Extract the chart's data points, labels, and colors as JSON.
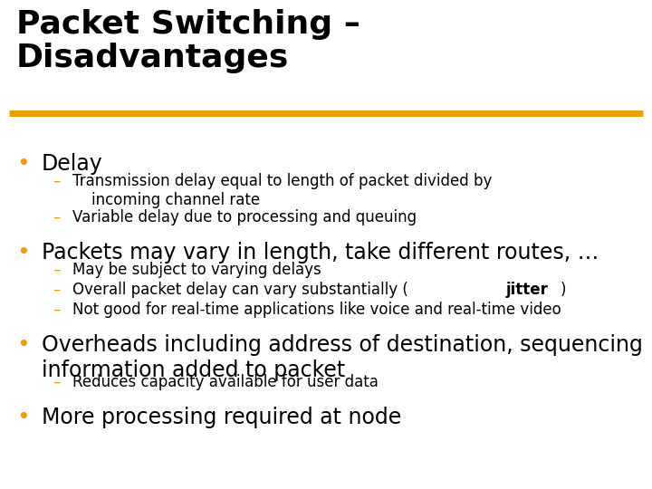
{
  "title_line1": "Packet Switching –",
  "title_line2": "Disadvantages",
  "title_color": "#000000",
  "title_fontsize": 26,
  "separator_color": "#E8A000",
  "background_color": "#FFFFFF",
  "bullet_color": "#E8A000",
  "dash_color": "#E8A000",
  "bullet_fontsize": 17,
  "sub_fontsize": 12,
  "bullet_items": [
    {
      "text": "Delay",
      "subs": [
        {
          "text": "Transmission delay equal to length of packet divided by\n    incoming channel rate",
          "bold_word": "",
          "wrapped": true
        },
        {
          "text": "Variable delay due to processing and queuing",
          "bold_word": "",
          "wrapped": false
        }
      ]
    },
    {
      "text": "Packets may vary in length, take different routes, …",
      "subs": [
        {
          "text": "May be subject to varying delays",
          "bold_word": "",
          "wrapped": false
        },
        {
          "text": "Overall packet delay can vary substantially (jitter)",
          "bold_word": "jitter",
          "wrapped": false
        },
        {
          "text": "Not good for real-time applications like voice and real-time video",
          "bold_word": "",
          "wrapped": false
        }
      ]
    },
    {
      "text": "Overheads including address of destination, sequencing\ninformation added to packet",
      "subs": [
        {
          "text": "Reduces capacity available for user data",
          "bold_word": "",
          "wrapped": false
        }
      ]
    },
    {
      "text": "More processing required at node",
      "subs": []
    }
  ]
}
